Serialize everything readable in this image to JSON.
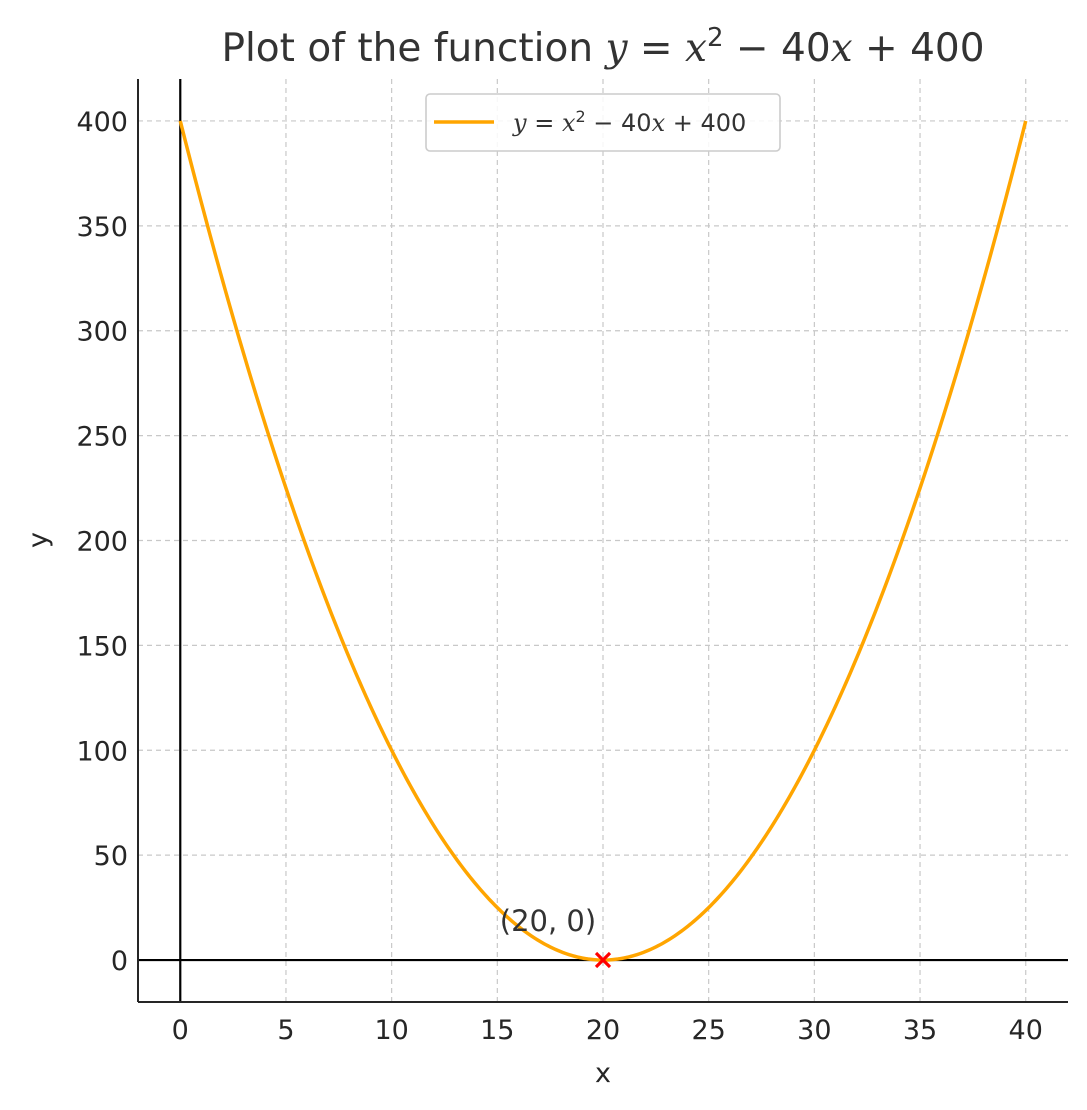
{
  "chart_data": {
    "type": "line",
    "title": "Plot of the function y = x² − 40x + 400",
    "title_parts": {
      "prefix": "Plot of the function ",
      "math": [
        "y",
        " = ",
        "x",
        "2",
        " − 40",
        "x",
        " + 400"
      ]
    },
    "xlabel": "x",
    "ylabel": "y",
    "xlim": [
      -2,
      42
    ],
    "ylim": [
      -20,
      420
    ],
    "xticks": [
      0,
      5,
      10,
      15,
      20,
      25,
      30,
      35,
      40
    ],
    "yticks": [
      0,
      50,
      100,
      150,
      200,
      250,
      300,
      350,
      400
    ],
    "grid": true,
    "legend_position": "top-center",
    "series": [
      {
        "name": "y = x² − 40x + 400",
        "name_math": [
          "y",
          " = ",
          "x",
          "2",
          " − 40",
          "x",
          " + 400"
        ],
        "color": "#FFA500",
        "function": {
          "a": 1,
          "b": -40,
          "c": 400
        },
        "x_range": [
          0,
          40
        ],
        "x": [
          0,
          5,
          10,
          15,
          20,
          25,
          30,
          35,
          40
        ],
        "y": [
          400,
          225,
          100,
          25,
          0,
          25,
          100,
          225,
          400
        ]
      }
    ],
    "reference_lines": {
      "x": 0,
      "y": 0,
      "color": "#000000"
    },
    "annotations": [
      {
        "text": "(20, 0)",
        "x": 20,
        "y": 0,
        "marker": "x",
        "marker_color": "#FF0000"
      }
    ]
  }
}
